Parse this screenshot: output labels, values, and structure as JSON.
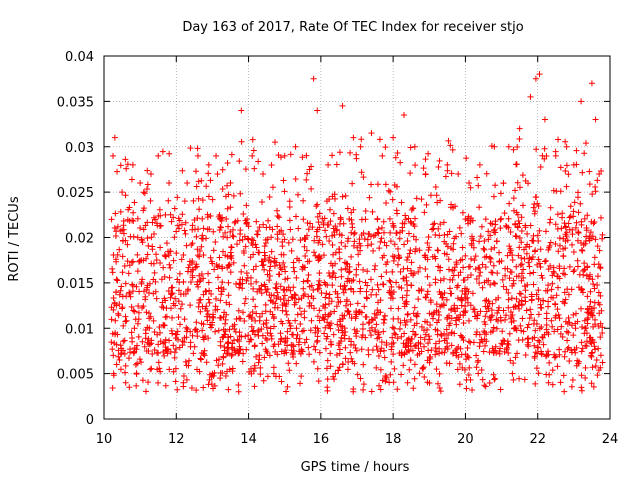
{
  "chart_data": {
    "type": "scatter",
    "title": "Day 163 of 2017, Rate Of TEC Index for receiver stjo",
    "xlabel": "GPS time / hours",
    "ylabel": "ROTI / TECUs",
    "xlim": [
      10,
      24
    ],
    "ylim": [
      0,
      0.04
    ],
    "xticks": [
      10,
      12,
      14,
      16,
      18,
      20,
      22,
      24
    ],
    "yticks": [
      0,
      0.005,
      0.01,
      0.015,
      0.02,
      0.025,
      0.03,
      0.035,
      0.04
    ],
    "xtick_labels": [
      "10",
      "12",
      "14",
      "16",
      "18",
      "20",
      "22",
      "24"
    ],
    "ytick_labels": [
      "0",
      "0.005",
      "0.01",
      "0.015",
      "0.02",
      "0.025",
      "0.03",
      "0.035",
      "0.04"
    ],
    "grid": true,
    "marker": "+",
    "marker_color": "#ff0000",
    "series": [
      {
        "name": "ROTI",
        "x_range": [
          10.2,
          23.8
        ],
        "points": [
          [
            10.25,
            0.029
          ],
          [
            10.3,
            0.031
          ],
          [
            10.35,
            0.006
          ],
          [
            10.5,
            0.025
          ],
          [
            10.6,
            0.004
          ],
          [
            10.7,
            0.0035
          ],
          [
            10.8,
            0.028
          ],
          [
            11.0,
            0.026
          ],
          [
            11.3,
            0.027
          ],
          [
            11.5,
            0.029
          ],
          [
            11.8,
            0.026
          ],
          [
            12.3,
            0.026
          ],
          [
            12.6,
            0.029
          ],
          [
            12.9,
            0.028
          ],
          [
            13.1,
            0.029
          ],
          [
            13.5,
            0.026
          ],
          [
            13.8,
            0.034
          ],
          [
            14.1,
            0.029
          ],
          [
            14.4,
            0.027
          ],
          [
            14.7,
            0.005
          ],
          [
            15.0,
            0.029
          ],
          [
            15.3,
            0.03
          ],
          [
            15.8,
            0.0375
          ],
          [
            15.9,
            0.034
          ],
          [
            16.2,
            0.028
          ],
          [
            16.6,
            0.0345
          ],
          [
            16.9,
            0.031
          ],
          [
            17.1,
            0.03
          ],
          [
            17.4,
            0.0315
          ],
          [
            17.7,
            0.029
          ],
          [
            18.0,
            0.031
          ],
          [
            18.3,
            0.0335
          ],
          [
            18.6,
            0.03
          ],
          [
            18.9,
            0.027
          ],
          [
            19.2,
            0.0055
          ],
          [
            19.5,
            0.028
          ],
          [
            19.8,
            0.027
          ],
          [
            20.1,
            0.026
          ],
          [
            20.4,
            0.028
          ],
          [
            20.8,
            0.03
          ],
          [
            21.2,
            0.03
          ],
          [
            21.5,
            0.032
          ],
          [
            21.8,
            0.0355
          ],
          [
            21.95,
            0.0375
          ],
          [
            22.05,
            0.038
          ],
          [
            22.2,
            0.033
          ],
          [
            22.5,
            0.029
          ],
          [
            22.8,
            0.03
          ],
          [
            23.0,
            0.028
          ],
          [
            23.2,
            0.035
          ],
          [
            23.5,
            0.037
          ],
          [
            23.6,
            0.033
          ],
          [
            23.7,
            0.027
          ],
          [
            22.3,
            0.004
          ],
          [
            16.4,
            0.005
          ],
          [
            18.4,
            0.004
          ],
          [
            13.0,
            0.005
          ],
          [
            21.3,
            0.005
          ]
        ],
        "band_min": 0.003,
        "band_typical_low": 0.007,
        "band_typical_high": 0.022,
        "band_max": 0.038
      }
    ]
  }
}
